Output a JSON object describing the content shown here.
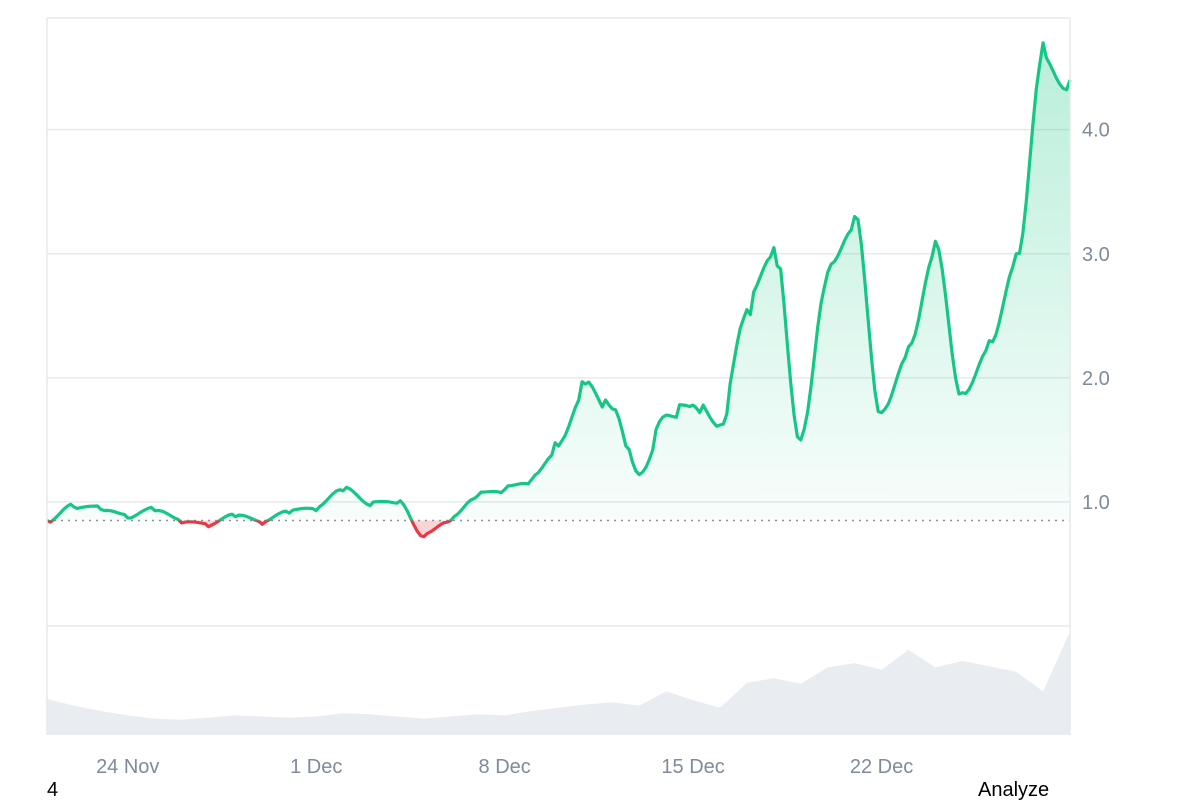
{
  "chart_data": {
    "type": "area",
    "x_ticks": [
      "24 Nov",
      "1 Dec",
      "8 Dec",
      "15 Dec",
      "22 Dec"
    ],
    "y_ticks": [
      "1.0",
      "2.0",
      "3.0",
      "4.0"
    ],
    "ylim": [
      0,
      4.9
    ],
    "baseline": 0.85,
    "grid": true,
    "colors": {
      "up": "#16c784",
      "down": "#ea3943",
      "volume": "#e9edf2"
    },
    "price": [
      [
        "2024-11-21",
        0.85
      ],
      [
        "2024-11-22",
        0.96
      ],
      [
        "2024-11-23",
        0.94
      ],
      [
        "2024-11-24",
        0.87
      ],
      [
        "2024-11-25",
        0.93
      ],
      [
        "2024-11-26",
        0.83
      ],
      [
        "2024-11-27",
        0.8
      ],
      [
        "2024-11-28",
        0.88
      ],
      [
        "2024-11-29",
        0.82
      ],
      [
        "2024-11-30",
        0.91
      ],
      [
        "2024-12-01",
        0.93
      ],
      [
        "2024-12-02",
        1.09
      ],
      [
        "2024-12-03",
        0.97
      ],
      [
        "2024-12-04",
        0.99
      ],
      [
        "2024-12-05",
        0.72
      ],
      [
        "2024-12-06",
        0.85
      ],
      [
        "2024-12-07",
        1.05
      ],
      [
        "2024-12-08",
        1.1
      ],
      [
        "2024-12-09",
        1.18
      ],
      [
        "2024-12-10",
        1.45
      ],
      [
        "2024-12-11",
        1.95
      ],
      [
        "2024-12-12",
        1.75
      ],
      [
        "2024-12-13",
        1.22
      ],
      [
        "2024-12-14",
        1.7
      ],
      [
        "2024-12-15",
        1.78
      ],
      [
        "2024-12-16",
        1.62
      ],
      [
        "2024-12-17",
        2.55
      ],
      [
        "2024-12-18",
        3.05
      ],
      [
        "2024-12-19",
        1.5
      ],
      [
        "2024-12-20",
        2.85
      ],
      [
        "2024-12-21",
        3.3
      ],
      [
        "2024-12-22",
        1.72
      ],
      [
        "2024-12-23",
        2.25
      ],
      [
        "2024-12-24",
        3.1
      ],
      [
        "2024-12-25",
        1.88
      ],
      [
        "2024-12-26",
        2.3
      ],
      [
        "2024-12-27",
        3.0
      ],
      [
        "2024-12-28",
        4.7
      ],
      [
        "2024-12-29",
        4.4
      ]
    ],
    "volume_relative": [
      0.33,
      0.27,
      0.22,
      0.18,
      0.15,
      0.14,
      0.16,
      0.18,
      0.17,
      0.16,
      0.17,
      0.2,
      0.19,
      0.17,
      0.15,
      0.17,
      0.19,
      0.18,
      0.22,
      0.25,
      0.28,
      0.3,
      0.27,
      0.4,
      0.32,
      0.25,
      0.48,
      0.52,
      0.47,
      0.62,
      0.66,
      0.6,
      0.78,
      0.62,
      0.68,
      0.63,
      0.58,
      0.4,
      0.95
    ]
  },
  "footer": {
    "left_label": "4",
    "right_label": "Analyze"
  }
}
